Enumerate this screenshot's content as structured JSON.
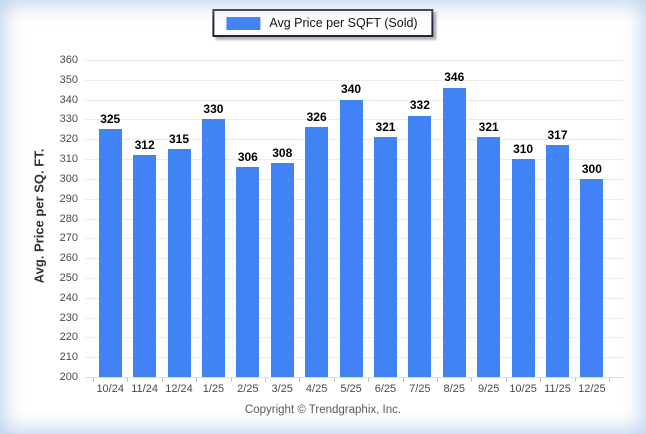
{
  "legend": {
    "label": "Avg Price per SQFT (Sold)"
  },
  "footer": {
    "text": "Copyright © Trendgraphix, Inc."
  },
  "colors": {
    "bar": "#4183f4",
    "grid": "#ececec"
  },
  "chart_data": {
    "type": "bar",
    "title": "",
    "categories": [
      "10/24",
      "11/24",
      "12/24",
      "1/25",
      "2/25",
      "3/25",
      "4/25",
      "5/25",
      "6/25",
      "7/25",
      "8/25",
      "9/25",
      "10/25",
      "11/25",
      "12/25"
    ],
    "values": [
      325,
      312,
      315,
      330,
      306,
      308,
      326,
      340,
      321,
      332,
      346,
      321,
      310,
      317,
      300
    ],
    "series_name": "Avg Price per SQFT (Sold)",
    "xlabel": "",
    "ylabel": "Avg. Price per SQ. FT.",
    "ylim": [
      200,
      360
    ],
    "ytick_step": 10,
    "grid": true,
    "legend_position": "top-center",
    "value_labels": true
  }
}
